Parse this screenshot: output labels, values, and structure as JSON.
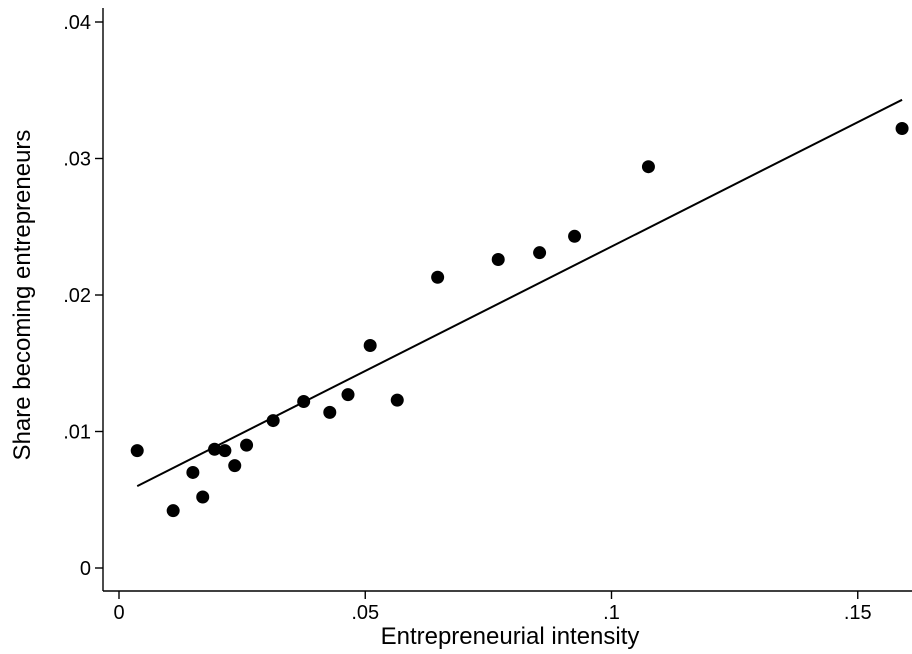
{
  "chart_data": {
    "type": "scatter",
    "title": "",
    "xlabel": "Entrepreneurial intensity",
    "ylabel": "Share becoming entrepreneurs",
    "xlim": [
      0,
      0.16
    ],
    "ylim": [
      0,
      0.04
    ],
    "x_ticks": [
      {
        "value": 0,
        "label": "0"
      },
      {
        "value": 0.05,
        "label": ".05"
      },
      {
        "value": 0.1,
        "label": ".1"
      },
      {
        "value": 0.15,
        "label": ".15"
      }
    ],
    "y_ticks": [
      {
        "value": 0,
        "label": "0"
      },
      {
        "value": 0.01,
        "label": ".01"
      },
      {
        "value": 0.02,
        "label": ".02"
      },
      {
        "value": 0.03,
        "label": ".03"
      },
      {
        "value": 0.04,
        "label": ".04"
      }
    ],
    "grid": false,
    "legend": "none",
    "series": [
      {
        "type": "scatter",
        "color": "#000000",
        "points": [
          {
            "x": 0.0037,
            "y": 0.0086
          },
          {
            "x": 0.011,
            "y": 0.0042
          },
          {
            "x": 0.015,
            "y": 0.007
          },
          {
            "x": 0.017,
            "y": 0.0052
          },
          {
            "x": 0.0194,
            "y": 0.0087
          },
          {
            "x": 0.0215,
            "y": 0.0086
          },
          {
            "x": 0.0235,
            "y": 0.0075
          },
          {
            "x": 0.0259,
            "y": 0.009
          },
          {
            "x": 0.0313,
            "y": 0.0108
          },
          {
            "x": 0.0375,
            "y": 0.0122
          },
          {
            "x": 0.0428,
            "y": 0.0114
          },
          {
            "x": 0.0465,
            "y": 0.0127
          },
          {
            "x": 0.051,
            "y": 0.0163
          },
          {
            "x": 0.0565,
            "y": 0.0123
          },
          {
            "x": 0.0647,
            "y": 0.0213
          },
          {
            "x": 0.077,
            "y": 0.0226
          },
          {
            "x": 0.0854,
            "y": 0.0231
          },
          {
            "x": 0.0925,
            "y": 0.0243
          },
          {
            "x": 0.1075,
            "y": 0.0294
          },
          {
            "x": 0.159,
            "y": 0.0322
          }
        ]
      },
      {
        "type": "line",
        "color": "#000000",
        "points": [
          {
            "x": 0.0037,
            "y": 0.006
          },
          {
            "x": 0.159,
            "y": 0.0343
          }
        ]
      }
    ]
  }
}
